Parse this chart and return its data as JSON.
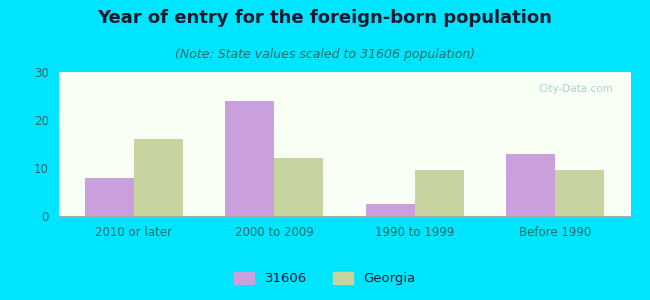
{
  "title": "Year of entry for the foreign-born population",
  "subtitle": "(Note: State values scaled to 31606 population)",
  "categories": [
    "2010 or later",
    "2000 to 2009",
    "1990 to 1999",
    "Before 1990"
  ],
  "values_31606": [
    8,
    24,
    2.5,
    13
  ],
  "values_georgia": [
    16,
    12,
    9.5,
    9.5
  ],
  "color_31606": "#c9a0dc",
  "color_georgia": "#c8d4a0",
  "background_outer": "#00e5ff",
  "background_inner_top": "#e8f5e0",
  "background_inner_bottom": "#f8fff4",
  "ylim": [
    0,
    30
  ],
  "yticks": [
    0,
    10,
    20,
    30
  ],
  "legend_label_1": "31606",
  "legend_label_2": "Georgia",
  "title_fontsize": 13,
  "subtitle_fontsize": 9,
  "bar_width": 0.35,
  "title_color": "#1a1a2e",
  "subtitle_color": "#2a6a6a",
  "tick_color": "#2a6a6a",
  "watermark_color": "#a0c8c8"
}
